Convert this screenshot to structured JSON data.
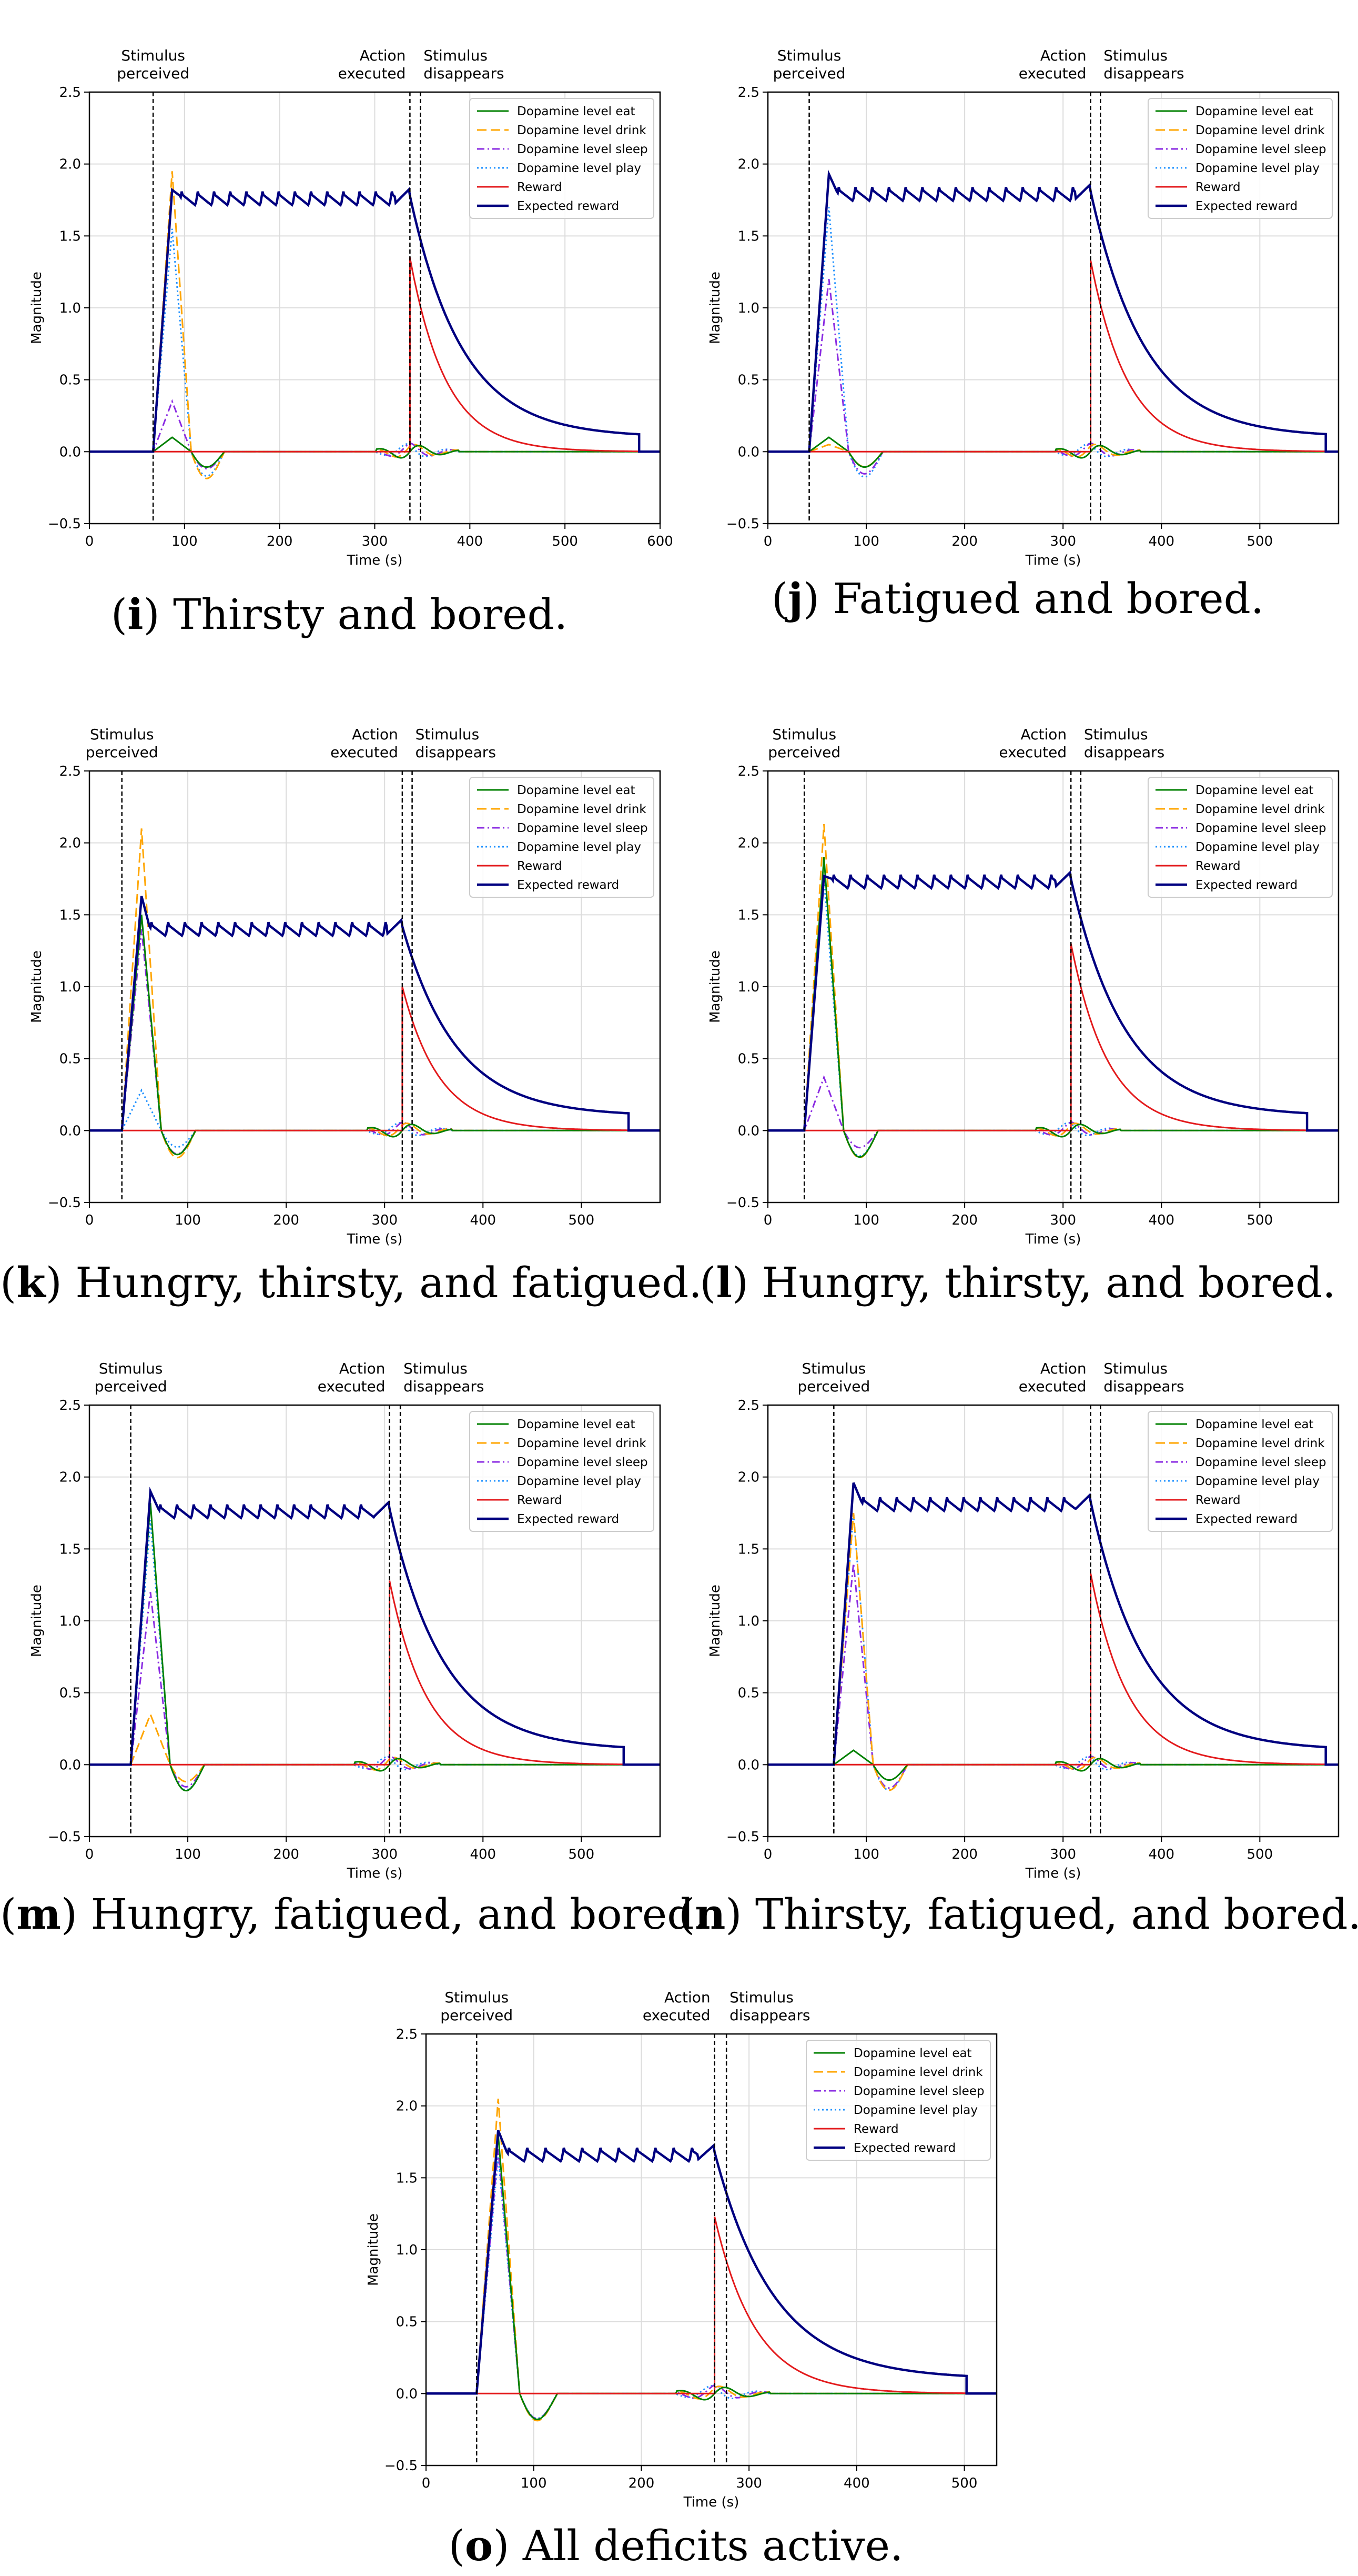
{
  "common": {
    "ylabel": "Magnitude",
    "xlabel": "Time (s)",
    "annotations": {
      "stimulus_perceived": [
        "Stimulus",
        "perceived"
      ],
      "action_executed": [
        "Action",
        "executed"
      ],
      "stimulus_disappears": [
        "Stimulus",
        "disappears"
      ]
    },
    "legend": [
      {
        "name": "Dopamine level eat",
        "color": "#008000",
        "style": "solid"
      },
      {
        "name": "Dopamine level drink",
        "color": "#ffa500",
        "style": "dashed"
      },
      {
        "name": "Dopamine level sleep",
        "color": "#8a2be2",
        "style": "dashdot"
      },
      {
        "name": "Dopamine level play",
        "color": "#1e90ff",
        "style": "dotted"
      },
      {
        "name": "Reward",
        "color": "#e31a1c",
        "style": "solid"
      },
      {
        "name": "Expected reward",
        "color": "#000080",
        "style": "solid"
      }
    ],
    "ylim": [
      -0.5,
      2.5
    ],
    "yticks": [
      "−0.5",
      "0.0",
      "0.5",
      "1.0",
      "1.5",
      "2.0",
      "2.5"
    ],
    "grid": true,
    "legend_position": "top-right"
  },
  "chart_data": [
    {
      "id": "i",
      "type": "line",
      "caption_letter": "i",
      "caption_text": " Thirsty and bored.",
      "xlim": [
        0,
        600
      ],
      "xticks": [
        0,
        100,
        200,
        300,
        400,
        500,
        600
      ],
      "stimulus_perceived": 67,
      "action_executed": 337,
      "stimulus_disappears": 348,
      "end": 578,
      "peaks": {
        "eat": 0.1,
        "drink": 1.95,
        "sleep": 0.35,
        "play": 1.55
      },
      "peak_time": 87,
      "expected_peak": 1.82,
      "expected_plateau": 1.73,
      "expected_tail": 0.1,
      "reward_peak": 1.35
    },
    {
      "id": "j",
      "type": "line",
      "caption_letter": "j",
      "caption_text": " Fatigued and bored.",
      "xlim": [
        0,
        580
      ],
      "xticks": [
        0,
        100,
        200,
        300,
        400,
        500
      ],
      "stimulus_perceived": 42,
      "action_executed": 328,
      "stimulus_disappears": 338,
      "end": 567,
      "peaks": {
        "eat": 0.1,
        "drink": 0.05,
        "sleep": 1.2,
        "play": 1.7
      },
      "peak_time": 62,
      "expected_peak": 1.93,
      "expected_plateau": 1.76,
      "expected_tail": 0.1,
      "reward_peak": 1.33
    },
    {
      "id": "k",
      "type": "line",
      "caption_letter": "k",
      "caption_text": " Hungry, thirsty, and fatigued.",
      "xlim": [
        0,
        580
      ],
      "xticks": [
        0,
        100,
        200,
        300,
        400,
        500
      ],
      "stimulus_perceived": 33,
      "action_executed": 318,
      "stimulus_disappears": 328,
      "end": 548,
      "peaks": {
        "eat": 1.5,
        "drink": 2.1,
        "sleep": 1.4,
        "play": 0.28
      },
      "peak_time": 53,
      "expected_peak": 1.63,
      "expected_plateau": 1.37,
      "expected_tail": 0.1,
      "reward_peak": 1.0
    },
    {
      "id": "l",
      "type": "line",
      "caption_letter": "l",
      "caption_text": " Hungry, thirsty, and bored.",
      "xlim": [
        0,
        580
      ],
      "xticks": [
        0,
        100,
        200,
        300,
        400,
        500
      ],
      "stimulus_perceived": 37,
      "action_executed": 308,
      "stimulus_disappears": 318,
      "end": 548,
      "peaks": {
        "eat": 1.9,
        "drink": 2.13,
        "sleep": 0.37,
        "play": 1.75
      },
      "peak_time": 57,
      "expected_peak": 1.77,
      "expected_plateau": 1.7,
      "expected_tail": 0.1,
      "reward_peak": 1.3
    },
    {
      "id": "m",
      "type": "line",
      "caption_letter": "m",
      "caption_text": " Hungry, fatigued, and bored.",
      "xlim": [
        0,
        580
      ],
      "xticks": [
        0,
        100,
        200,
        300,
        400,
        500
      ],
      "stimulus_perceived": 42,
      "action_executed": 305,
      "stimulus_disappears": 316,
      "end": 543,
      "peaks": {
        "eat": 1.82,
        "drink": 0.35,
        "sleep": 1.2,
        "play": 1.7
      },
      "peak_time": 62,
      "expected_peak": 1.9,
      "expected_plateau": 1.73,
      "expected_tail": 0.1,
      "reward_peak": 1.28
    },
    {
      "id": "n",
      "type": "line",
      "caption_letter": "n",
      "caption_text": " Thirsty, fatigued, and bored.",
      "xlim": [
        0,
        580
      ],
      "xticks": [
        0,
        100,
        200,
        300,
        400,
        500
      ],
      "stimulus_perceived": 67,
      "action_executed": 328,
      "stimulus_disappears": 338,
      "end": 567,
      "peaks": {
        "eat": 0.1,
        "drink": 1.75,
        "sleep": 1.4,
        "play": 1.75
      },
      "peak_time": 87,
      "expected_peak": 1.96,
      "expected_plateau": 1.78,
      "expected_tail": 0.1,
      "reward_peak": 1.33
    },
    {
      "id": "o",
      "type": "line",
      "caption_letter": "o",
      "caption_text": " All deficits active.",
      "xlim": [
        0,
        530
      ],
      "xticks": [
        0,
        100,
        200,
        300,
        400,
        500
      ],
      "stimulus_perceived": 47,
      "action_executed": 268,
      "stimulus_disappears": 279,
      "end": 502,
      "peaks": {
        "eat": 1.8,
        "drink": 2.05,
        "sleep": 1.7,
        "play": 1.65
      },
      "peak_time": 67,
      "expected_peak": 1.83,
      "expected_plateau": 1.63,
      "expected_tail": 0.1,
      "reward_peak": 1.23
    }
  ]
}
